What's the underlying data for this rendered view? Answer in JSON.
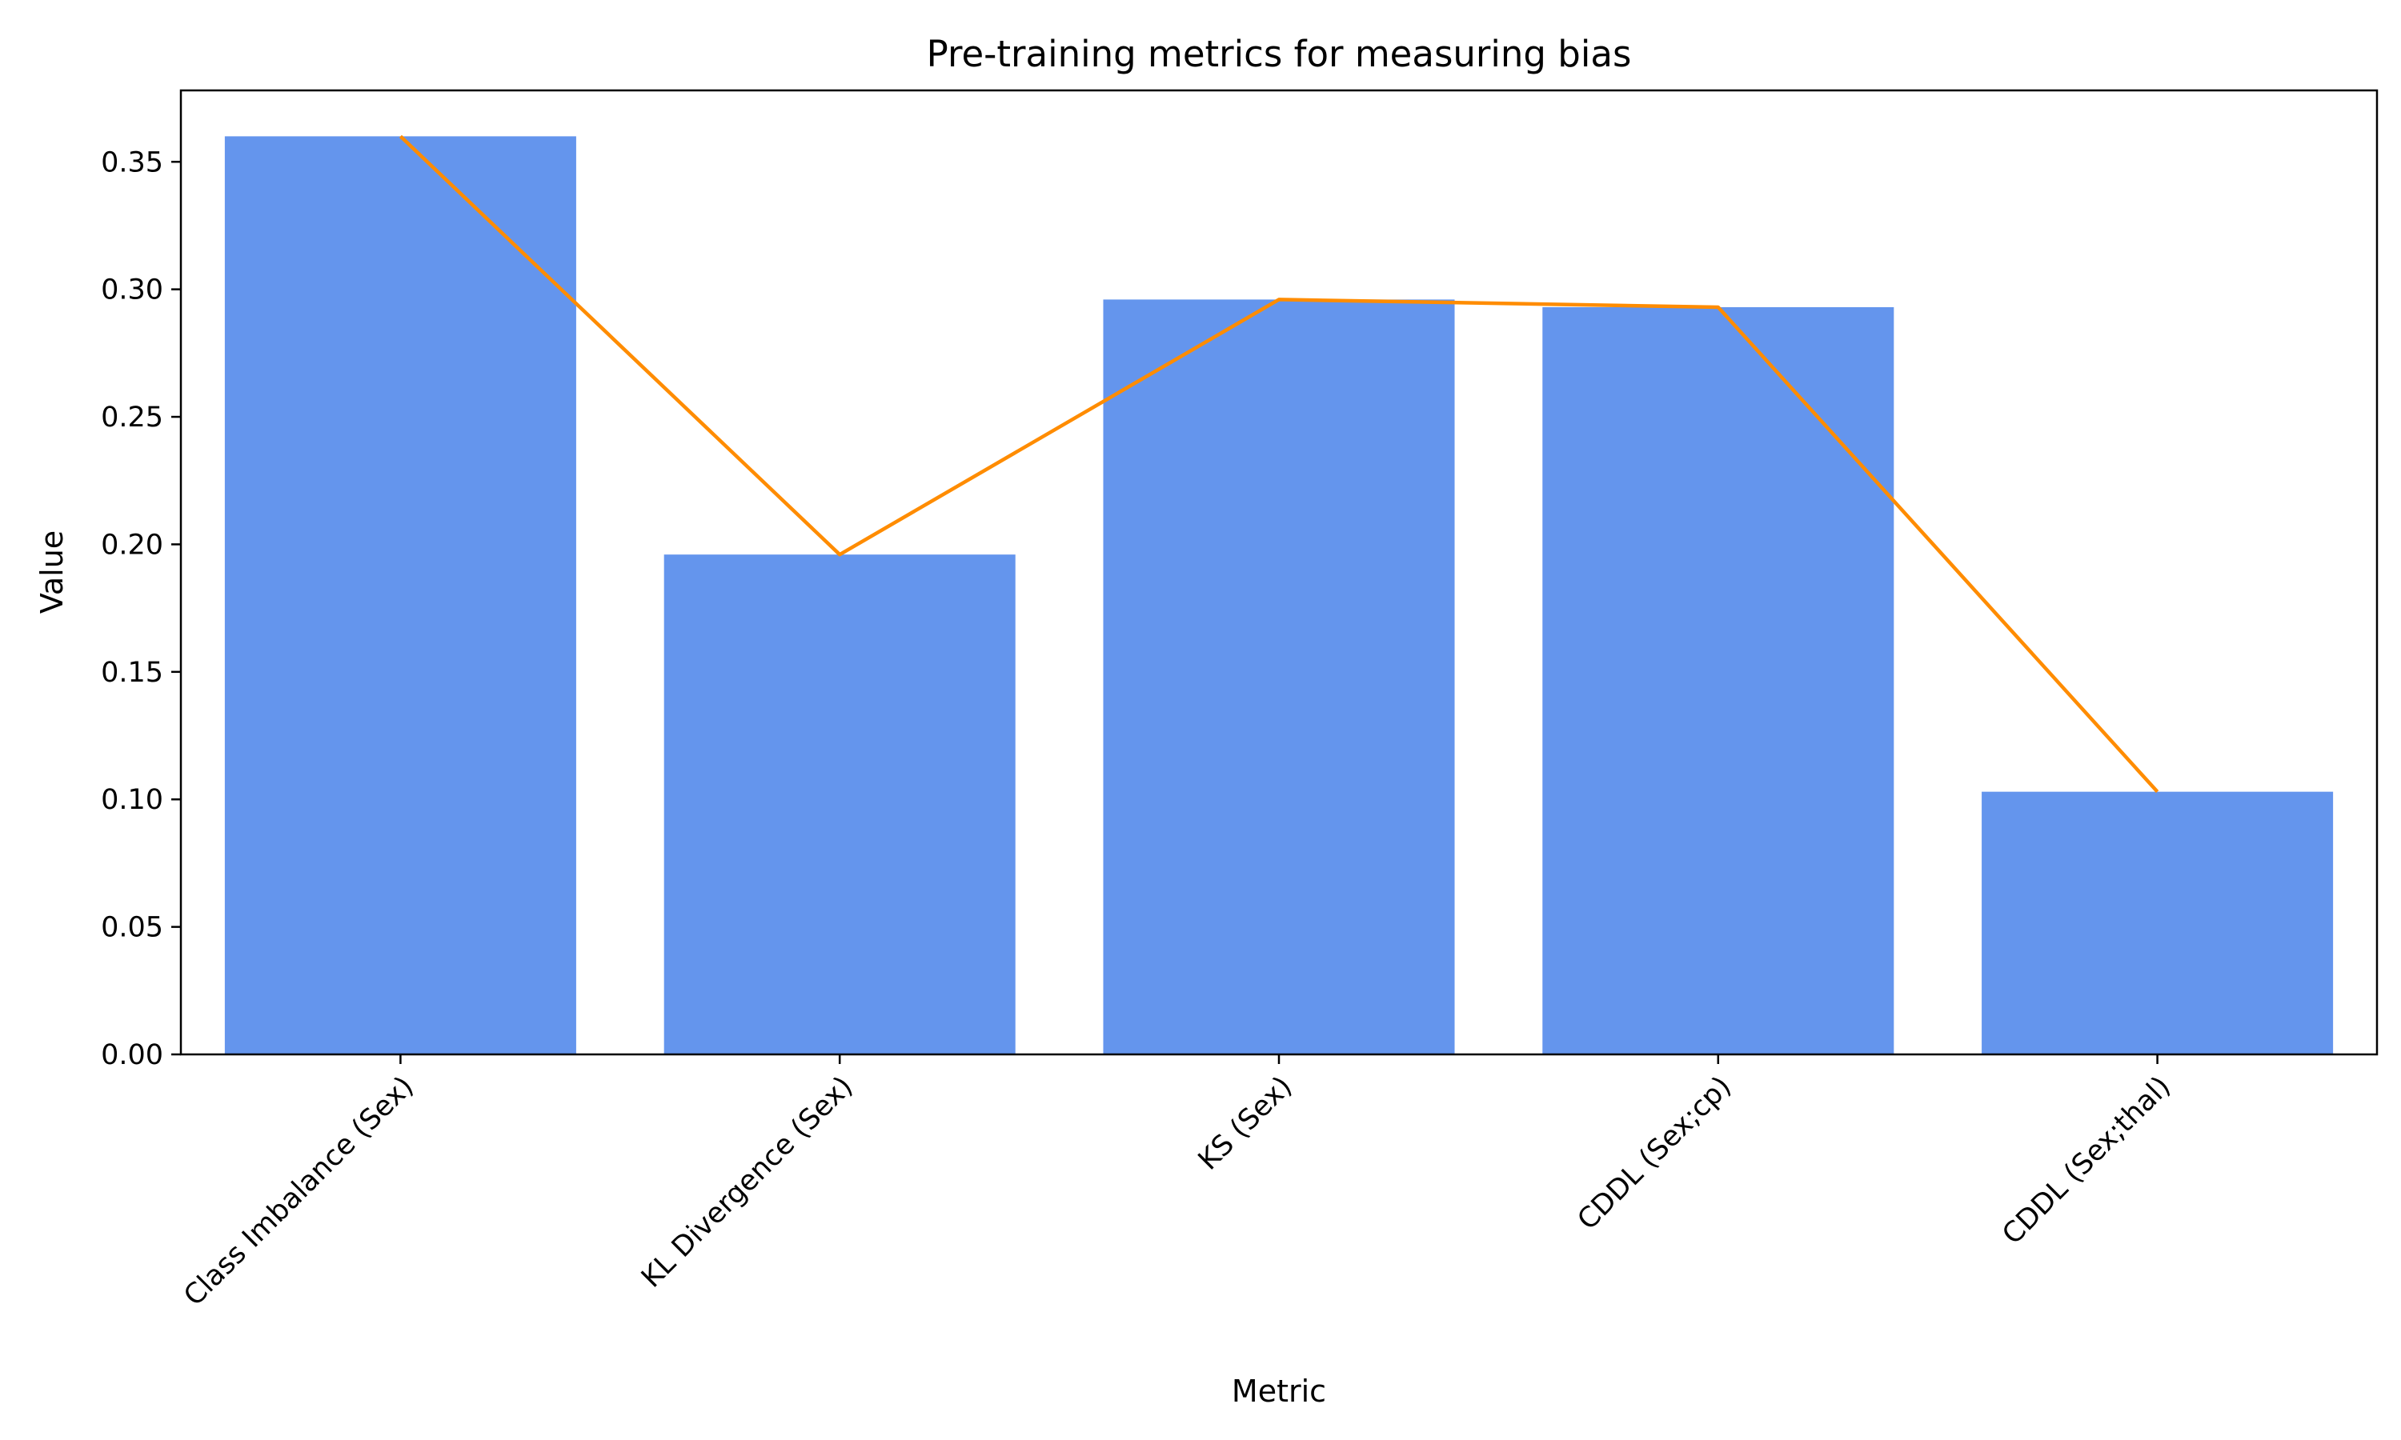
{
  "chart_data": {
    "type": "bar",
    "title": "Pre-training metrics for measuring bias",
    "xlabel": "Metric",
    "ylabel": "Value",
    "categories": [
      "Class Imbalance (Sex)",
      "KL Divergence (Sex)",
      "KS (Sex)",
      "CDDL (Sex;cp)",
      "CDDL (Sex;thal)"
    ],
    "series": [
      {
        "type": "bar",
        "values": [
          0.36,
          0.196,
          0.296,
          0.293,
          0.103
        ],
        "color": "#6495ED"
      },
      {
        "type": "line",
        "values": [
          0.36,
          0.196,
          0.296,
          0.293,
          0.103
        ],
        "color": "#FF8C00"
      }
    ],
    "ylim": [
      0,
      0.378
    ],
    "yticks": [
      "0.00",
      "0.05",
      "0.10",
      "0.15",
      "0.20",
      "0.25",
      "0.30",
      "0.35"
    ],
    "grid": false,
    "legend": "none"
  }
}
